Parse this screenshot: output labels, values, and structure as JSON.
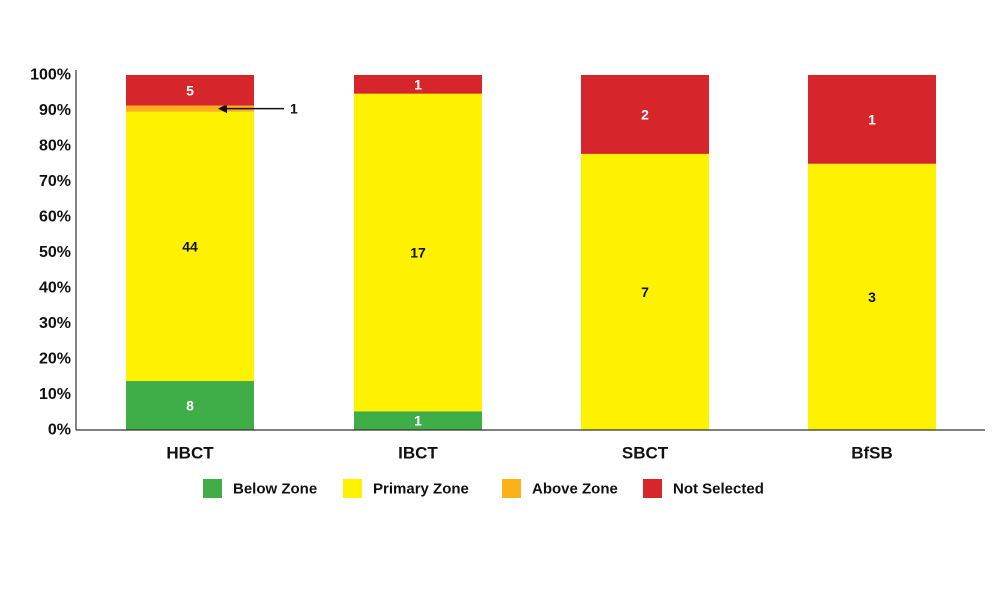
{
  "chart_data": {
    "type": "bar",
    "stacked": true,
    "percent": true,
    "categories": [
      "HBCT",
      "IBCT",
      "SBCT",
      "BfSB"
    ],
    "y_ticks": [
      "0%",
      "10%",
      "20%",
      "30%",
      "40%",
      "50%",
      "60%",
      "70%",
      "80%",
      "90%",
      "100%"
    ],
    "ylim": [
      0,
      100
    ],
    "grid": false,
    "legend_position": "bottom",
    "series": [
      {
        "name": "Below Zone",
        "color": "#3fae49",
        "values": [
          8,
          1,
          0,
          0
        ],
        "label_color": "#ffffff"
      },
      {
        "name": "Primary Zone",
        "color": "#fff200",
        "values": [
          44,
          17,
          7,
          3
        ],
        "label_color": "#111111"
      },
      {
        "name": "Above Zone",
        "color": "#fbb117",
        "values": [
          1,
          0,
          0,
          0
        ],
        "label_color": "#111111"
      },
      {
        "name": "Not Selected",
        "color": "#d7262b",
        "values": [
          5,
          1,
          2,
          1
        ],
        "label_color": "#ffffff"
      }
    ],
    "annotations": [
      {
        "category": "HBCT",
        "series": "Above Zone",
        "text": "1",
        "style": "arrow"
      }
    ]
  }
}
